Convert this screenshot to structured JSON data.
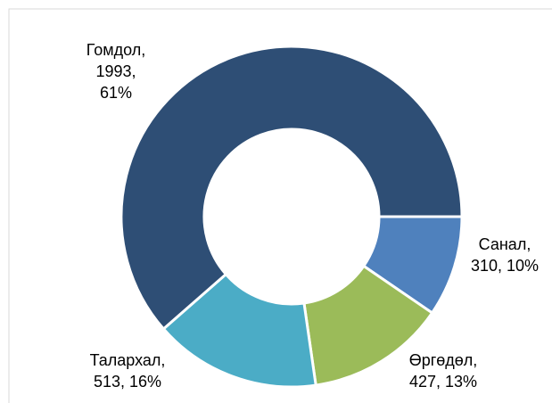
{
  "chart_data": {
    "type": "donut",
    "categories": [
      "Санал",
      "Өргөдөл",
      "Талархал",
      "Гомдол"
    ],
    "values": [
      310,
      427,
      513,
      1993
    ],
    "percent_labels": [
      "10%",
      "13%",
      "16%",
      "61%"
    ],
    "label_separator": ",",
    "colors": [
      "#4f81bd",
      "#9bbb59",
      "#4bacc6",
      "#2e4e75"
    ]
  }
}
